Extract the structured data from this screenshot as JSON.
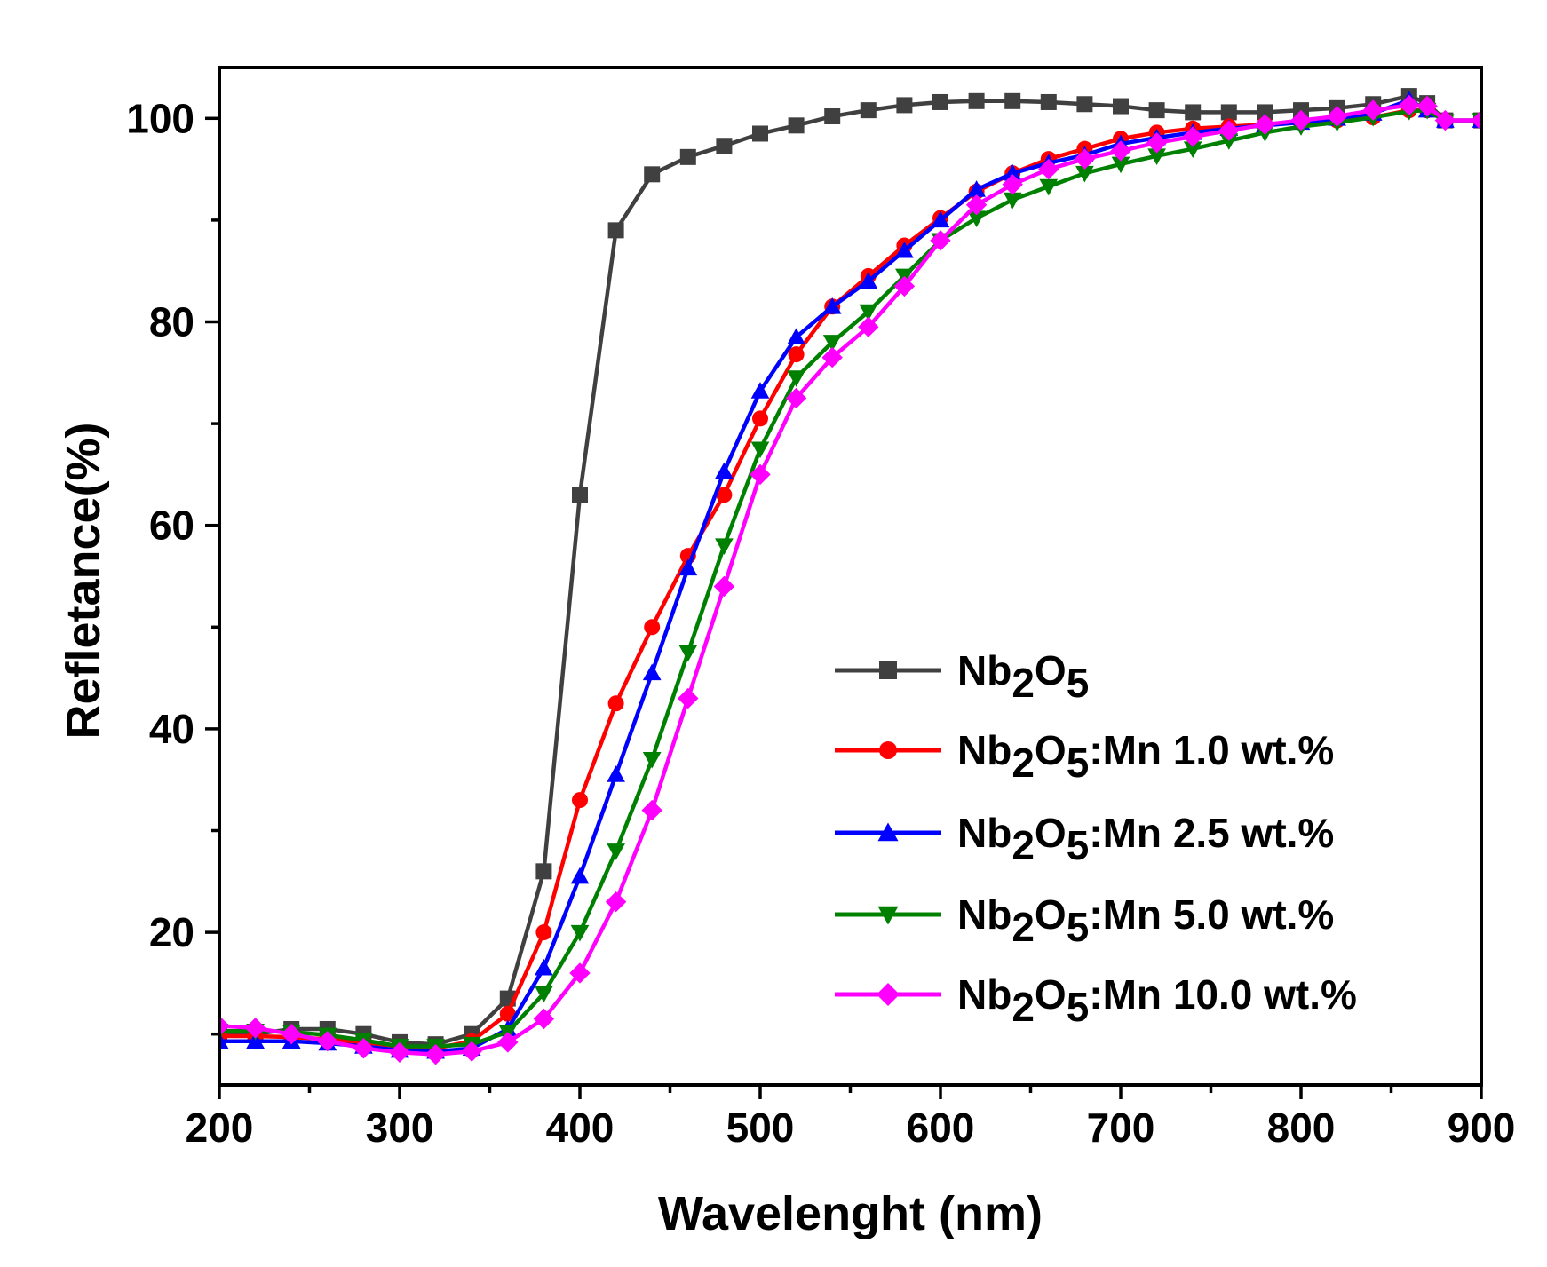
{
  "chart_data": {
    "type": "line",
    "title": "",
    "xlabel": "Wavelenght (nm)",
    "ylabel": "Refletance(%)",
    "xlim": [
      200,
      900
    ],
    "ylim": [
      5,
      105
    ],
    "xticks": [
      200,
      300,
      400,
      500,
      600,
      700,
      800,
      900
    ],
    "yticks": [
      20,
      40,
      60,
      80,
      100
    ],
    "legend_position": "bottom-right",
    "series": [
      {
        "name": "Nb2O5",
        "legend": {
          "base": "Nb",
          "sub1": "2",
          "mid": "O",
          "sub2": "5",
          "rest": ""
        },
        "color": "#404040",
        "marker": "square",
        "x": [
          200,
          220,
          240,
          260,
          280,
          300,
          320,
          340,
          360,
          380,
          400,
          420,
          440,
          460,
          480,
          500,
          520,
          540,
          560,
          580,
          600,
          620,
          640,
          660,
          680,
          700,
          720,
          740,
          760,
          780,
          800,
          820,
          840,
          860,
          870,
          880,
          900
        ],
        "y": [
          10,
          10,
          10.5,
          10.5,
          10,
          9.2,
          9.0,
          10,
          13.5,
          26,
          63,
          89,
          94.5,
          96.2,
          97.3,
          98.5,
          99.3,
          100.2,
          100.8,
          101.3,
          101.6,
          101.7,
          101.7,
          101.6,
          101.4,
          101.2,
          100.8,
          100.6,
          100.6,
          100.6,
          100.8,
          101.0,
          101.4,
          102.2,
          101.5,
          99.8,
          99.8
        ]
      },
      {
        "name": "Nb2O5:Mn 1.0 wt.%",
        "legend": {
          "base": "Nb",
          "sub1": "2",
          "mid": "O",
          "sub2": "5",
          "rest": ":Mn 1.0 wt.%"
        },
        "color": "#ff0000",
        "marker": "circle",
        "x": [
          200,
          220,
          240,
          260,
          280,
          300,
          320,
          340,
          360,
          380,
          400,
          420,
          440,
          460,
          480,
          500,
          520,
          540,
          560,
          580,
          600,
          620,
          640,
          660,
          680,
          700,
          720,
          740,
          760,
          780,
          800,
          820,
          840,
          860,
          870,
          880,
          900
        ],
        "y": [
          9.8,
          9.8,
          9.7,
          9.5,
          9.1,
          8.6,
          8.6,
          9.3,
          12,
          20,
          33,
          42.5,
          50,
          57,
          63,
          70.5,
          76.8,
          81.5,
          84.5,
          87.5,
          90.2,
          92.8,
          94.6,
          96,
          97,
          98,
          98.6,
          99,
          99.2,
          99.4,
          99.6,
          99.8,
          100.1,
          100.8,
          100.8,
          99.8,
          99.8
        ]
      },
      {
        "name": "Nb2O5:Mn 2.5 wt.%",
        "legend": {
          "base": "Nb",
          "sub1": "2",
          "mid": "O",
          "sub2": "5",
          "rest": ":Mn 2.5 wt.%"
        },
        "color": "#0000ff",
        "marker": "triangle-up",
        "x": [
          200,
          220,
          240,
          260,
          280,
          300,
          320,
          340,
          360,
          380,
          400,
          420,
          440,
          460,
          480,
          500,
          520,
          540,
          560,
          580,
          600,
          620,
          640,
          660,
          680,
          700,
          720,
          740,
          760,
          780,
          800,
          820,
          840,
          860,
          870,
          880,
          900
        ],
        "y": [
          9.3,
          9.3,
          9.3,
          9.1,
          8.8,
          8.4,
          8.3,
          8.6,
          10.5,
          16.5,
          25.5,
          35.5,
          45.5,
          55.8,
          65.3,
          73.2,
          78.5,
          81.5,
          84,
          87,
          90,
          93,
          94.6,
          95.6,
          96.4,
          97.5,
          98.1,
          98.6,
          99,
          99.3,
          99.6,
          100,
          100.5,
          101.8,
          100.8,
          99.8,
          99.8
        ]
      },
      {
        "name": "Nb2O5:Mn 5.0 wt.%",
        "legend": {
          "base": "Nb",
          "sub1": "2",
          "mid": "O",
          "sub2": "5",
          "rest": ":Mn 5.0 wt.%"
        },
        "color": "#008000",
        "marker": "triangle-down",
        "x": [
          200,
          220,
          240,
          260,
          280,
          300,
          320,
          340,
          360,
          380,
          400,
          420,
          440,
          460,
          480,
          500,
          520,
          540,
          560,
          580,
          600,
          620,
          640,
          660,
          680,
          700,
          720,
          740,
          760,
          780,
          800,
          820,
          840,
          860,
          870,
          880,
          900
        ],
        "y": [
          10.3,
          10.3,
          10.2,
          9.9,
          9.4,
          8.8,
          8.8,
          9.0,
          10.2,
          14,
          20,
          28,
          37,
          47.5,
          58,
          67.5,
          74.5,
          78,
          81,
          84.5,
          88,
          90.2,
          92,
          93.3,
          94.6,
          95.5,
          96.3,
          97,
          97.8,
          98.6,
          99.2,
          99.6,
          100.1,
          100.7,
          100.8,
          99.7,
          99.8
        ]
      },
      {
        "name": "Nb2O5:Mn 10.0 wt.%",
        "legend": {
          "base": "Nb",
          "sub1": "2",
          "mid": "O",
          "sub2": "5",
          "rest": ":Mn 10.0 wt.%"
        },
        "color": "#ff00ff",
        "marker": "diamond",
        "x": [
          200,
          220,
          240,
          260,
          280,
          300,
          320,
          340,
          360,
          380,
          400,
          420,
          440,
          460,
          480,
          500,
          520,
          540,
          560,
          580,
          600,
          620,
          640,
          660,
          680,
          700,
          720,
          740,
          760,
          780,
          800,
          820,
          840,
          860,
          870,
          880,
          900
        ],
        "y": [
          10.8,
          10.6,
          10.0,
          9.3,
          8.6,
          8.2,
          8.0,
          8.3,
          9.2,
          11.5,
          16,
          23,
          32,
          43,
          54,
          65,
          72.5,
          76.5,
          79.5,
          83.5,
          88,
          91.5,
          93.5,
          95,
          96,
          96.8,
          97.6,
          98.2,
          98.8,
          99.4,
          99.8,
          100.2,
          100.8,
          101.3,
          101.2,
          99.8,
          99.8
        ]
      }
    ]
  }
}
